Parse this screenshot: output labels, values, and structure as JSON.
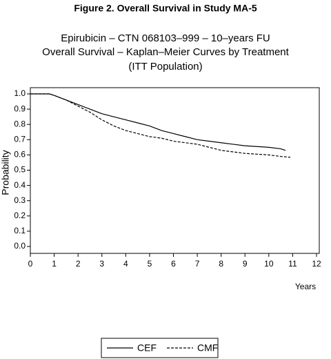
{
  "chart_data": {
    "type": "line",
    "title": "Figure 2.  Overall Survival in Study MA-5",
    "subtitle": [
      "Epirubicin – CTN 068103–999 – 10–years FU",
      "Overall Survival – Kaplan–Meier Curves by Treatment",
      "(ITT Population)"
    ],
    "y_label": "Probability",
    "x_label": "Years",
    "xlim": [
      0,
      12
    ],
    "xticks": [
      0,
      1,
      2,
      3,
      4,
      5,
      6,
      7,
      8,
      9,
      10,
      11,
      12
    ],
    "ylim": [
      0,
      1
    ],
    "yticks": [
      {
        "value": 0,
        "label": "0.0"
      },
      0.1,
      0.2,
      0.3,
      0.4,
      0.5,
      0.6,
      0.7,
      0.8,
      0.9,
      {
        "value": 1,
        "label": "1.0"
      }
    ],
    "series": [
      {
        "name": "CEF",
        "color": "#000000",
        "dash": "solid",
        "x": [
          0,
          0.5,
          0.8,
          1,
          1.5,
          2,
          2.5,
          3,
          3.5,
          4,
          4.5,
          5,
          5.5,
          6,
          6.5,
          7,
          7.5,
          8,
          8.5,
          9,
          9.5,
          10,
          10.5,
          10.7
        ],
        "values": [
          1.0,
          1.0,
          1.0,
          0.99,
          0.96,
          0.93,
          0.9,
          0.87,
          0.85,
          0.83,
          0.81,
          0.79,
          0.76,
          0.74,
          0.72,
          0.7,
          0.69,
          0.68,
          0.67,
          0.66,
          0.655,
          0.65,
          0.64,
          0.63
        ]
      },
      {
        "name": "CMF",
        "color": "#000000",
        "dash": "dashed",
        "x": [
          0,
          0.5,
          0.8,
          1,
          1.5,
          2,
          2.5,
          3,
          3.5,
          4,
          4.5,
          5,
          5.5,
          6,
          6.5,
          7,
          7.5,
          8,
          8.5,
          9,
          9.5,
          10,
          10.5,
          10.9
        ],
        "values": [
          1.0,
          1.0,
          1.0,
          0.99,
          0.96,
          0.92,
          0.88,
          0.83,
          0.79,
          0.76,
          0.74,
          0.72,
          0.71,
          0.69,
          0.68,
          0.67,
          0.65,
          0.63,
          0.62,
          0.61,
          0.605,
          0.6,
          0.59,
          0.585
        ]
      }
    ]
  }
}
